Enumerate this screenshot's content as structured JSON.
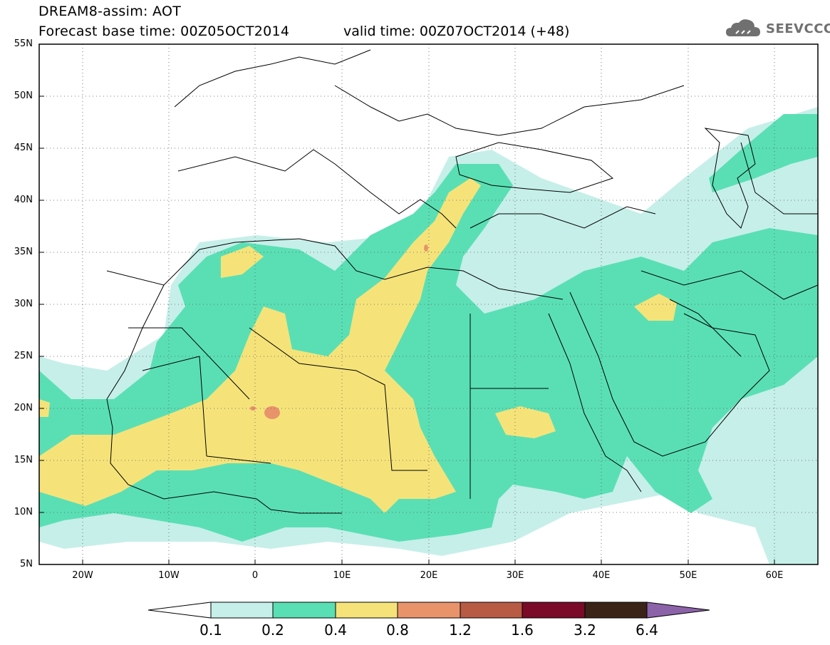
{
  "header": {
    "title_line1": "DREAM8-assim: AOT",
    "title_line2": "Forecast base time: 00Z05OCT2014",
    "valid_time": "valid time: 00Z07OCT2014 (+48)",
    "logo_text": "SEEVCCC",
    "logo_icon": "cloud-icon"
  },
  "map": {
    "lon_range": [
      -25,
      65
    ],
    "lat_range": [
      5,
      55
    ],
    "lat_labels": [
      "55N",
      "50N",
      "45N",
      "40N",
      "35N",
      "30N",
      "25N",
      "20N",
      "15N",
      "10N",
      "5N"
    ],
    "lon_labels": [
      "20W",
      "10W",
      "0",
      "10E",
      "20E",
      "30E",
      "40E",
      "50E",
      "60E"
    ],
    "gridlines": "dotted"
  },
  "colorbar": {
    "levels": [
      "0.1",
      "0.2",
      "0.4",
      "0.8",
      "1.2",
      "1.6",
      "3.2",
      "6.4"
    ],
    "colors": [
      "#ffffff",
      "#c6efe9",
      "#5adfb4",
      "#f5e37a",
      "#e9936b",
      "#b75b44",
      "#7a0a28",
      "#3b2417",
      "#8c63a8"
    ]
  }
}
